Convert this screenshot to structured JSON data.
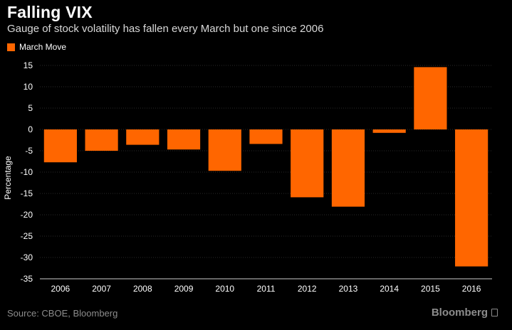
{
  "title": "Falling VIX",
  "subtitle": "Gauge of stock volatility has fallen every March but one since 2006",
  "legend_label": "March Move",
  "source": "Source: CBOE, Bloomberg",
  "brand": "Bloomberg",
  "colors": {
    "bar": "#ff6600",
    "background": "#000000",
    "grid": "#2a2a2a",
    "text": "#ffffff"
  },
  "chart_data": {
    "type": "bar",
    "title": "Falling VIX",
    "subtitle": "Gauge of stock volatility has fallen every March but one since 2006",
    "xlabel": "",
    "ylabel": "Percentage",
    "ylim": [
      -35,
      15
    ],
    "yticks": [
      15,
      10,
      5,
      0,
      -5,
      -10,
      -15,
      -20,
      -25,
      -30,
      -35
    ],
    "grid": true,
    "legend": "top-left",
    "categories": [
      "2006",
      "2007",
      "2008",
      "2009",
      "2010",
      "2011",
      "2012",
      "2013",
      "2014",
      "2015",
      "2016"
    ],
    "series": [
      {
        "name": "March Move",
        "values": [
          -7.7,
          -5.0,
          -3.6,
          -4.7,
          -9.7,
          -3.4,
          -15.9,
          -18.1,
          -0.8,
          14.6,
          -32.1
        ]
      }
    ]
  }
}
